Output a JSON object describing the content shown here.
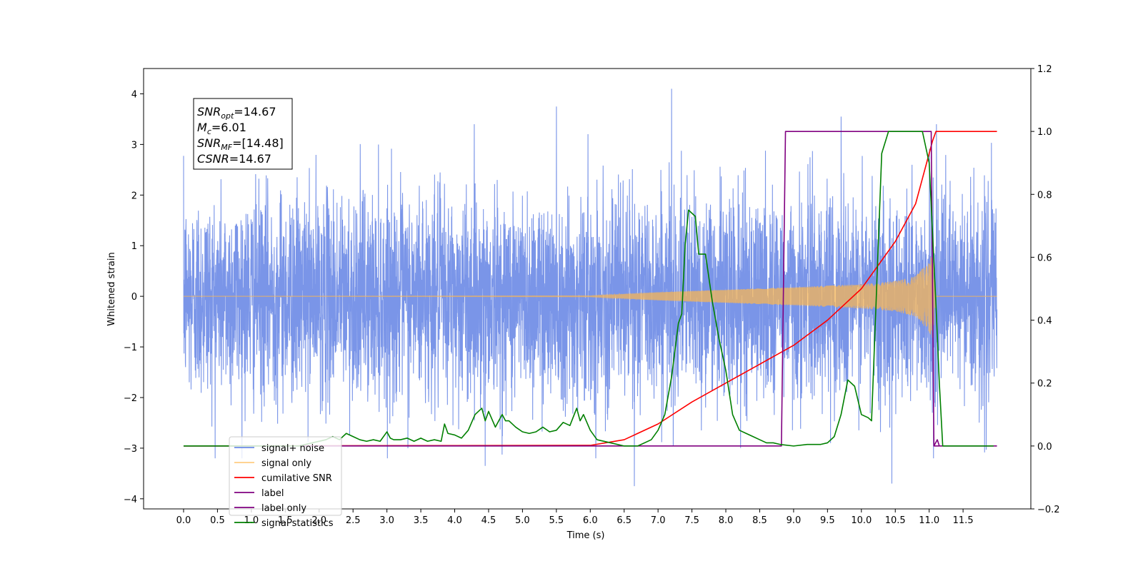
{
  "chart_data": {
    "type": "line",
    "xlabel": "Time (s)",
    "ylabel_left": "Whitened strain",
    "ylabel_right": "",
    "xlim": [
      -0.59,
      12.5
    ],
    "ylim_left": [
      -4.2,
      4.5
    ],
    "ylim_right": [
      -0.2,
      1.2
    ],
    "x_ticks": [
      "0.0",
      "0.5",
      "1.0",
      "1.5",
      "2.0",
      "2.5",
      "3.0",
      "3.5",
      "4.0",
      "4.5",
      "5.0",
      "5.5",
      "6.0",
      "6.5",
      "7.0",
      "7.5",
      "8.0",
      "8.5",
      "9.0",
      "9.5",
      "10.0",
      "10.5",
      "11.0",
      "11.5"
    ],
    "y_ticks_left": [
      "−4",
      "−3",
      "−2",
      "−1",
      "0",
      "1",
      "2",
      "3",
      "4"
    ],
    "y_ticks_right": [
      "−0.2",
      "0.0",
      "0.2",
      "0.4",
      "0.6",
      "0.8",
      "1.0",
      "1.2"
    ],
    "grid": false,
    "legend_placement": "lower-left",
    "annotation": [
      {
        "base": "SNR",
        "sub": "opt",
        "value": "=14.67"
      },
      {
        "base": "M",
        "sub": "c",
        "value": "=6.01"
      },
      {
        "base": "SNR",
        "sub": "MF",
        "value": "=[14.48]"
      },
      {
        "base": "CSNR",
        "sub": "",
        "value": "=14.67"
      }
    ],
    "colors": {
      "signal_noise": "#6b8ae6",
      "signal_only": "#ffb84d",
      "cumulative_snr": "#ff0000",
      "label": "#800080",
      "label_only": "#800080",
      "signal_statistics": "#008000"
    },
    "series": [
      {
        "name": "signal+ noise",
        "axis": "left",
        "description": "noisy whitened strain, sampled at high rate",
        "noise_sigma": 1.0,
        "x_range": [
          0.0,
          12.0
        ],
        "visible_spikes": [
          {
            "x": 7.2,
            "y": 4.1
          },
          {
            "x": 5.5,
            "y": 3.75
          },
          {
            "x": 9.7,
            "y": 3.55
          },
          {
            "x": 6.65,
            "y": -3.75
          },
          {
            "x": 10.45,
            "y": -3.7
          },
          {
            "x": 4.45,
            "y": -3.35
          }
        ]
      },
      {
        "name": "signal only",
        "axis": "left",
        "description": "chirp signal growing in amplitude",
        "envelope_x": [
          0.0,
          6.0,
          7.0,
          8.0,
          9.0,
          10.0,
          10.5,
          10.8,
          11.0,
          11.05,
          11.1,
          12.0
        ],
        "envelope_y": [
          0.0,
          0.01,
          0.08,
          0.13,
          0.18,
          0.24,
          0.3,
          0.4,
          0.7,
          0.85,
          0.0,
          0.0
        ]
      },
      {
        "name": "cumilative SNR",
        "axis": "right",
        "x": [
          0.0,
          6.0,
          6.5,
          7.0,
          7.5,
          8.0,
          8.5,
          9.0,
          9.5,
          10.0,
          10.5,
          10.8,
          11.0,
          11.05,
          11.1,
          11.5,
          12.0
        ],
        "y": [
          0.0,
          0.002,
          0.02,
          0.07,
          0.14,
          0.2,
          0.26,
          0.32,
          0.4,
          0.5,
          0.65,
          0.77,
          0.93,
          0.97,
          1.0,
          1.0,
          1.0
        ]
      },
      {
        "name": "label",
        "axis": "right",
        "x": [
          0.0,
          8.82,
          8.88,
          11.03,
          11.07,
          12.0
        ],
        "y": [
          0.0,
          0.0,
          1.0,
          1.0,
          0.0,
          0.0
        ]
      },
      {
        "name": "label only",
        "axis": "right",
        "x": [
          11.07,
          11.12,
          11.15
        ],
        "y": [
          0.0,
          0.02,
          0.0
        ]
      },
      {
        "name": "signal statistics",
        "axis": "right",
        "x": [
          0.0,
          1.7,
          1.9,
          2.1,
          2.2,
          2.3,
          2.4,
          2.5,
          2.6,
          2.7,
          2.8,
          2.9,
          3.0,
          3.05,
          3.1,
          3.2,
          3.3,
          3.4,
          3.5,
          3.6,
          3.7,
          3.8,
          3.85,
          3.9,
          4.0,
          4.1,
          4.2,
          4.3,
          4.4,
          4.45,
          4.5,
          4.6,
          4.7,
          4.75,
          4.8,
          4.9,
          5.0,
          5.1,
          5.2,
          5.3,
          5.4,
          5.5,
          5.6,
          5.7,
          5.8,
          5.85,
          5.9,
          6.0,
          6.1,
          6.3,
          6.5,
          6.7,
          6.9,
          7.0,
          7.1,
          7.2,
          7.3,
          7.35,
          7.4,
          7.45,
          7.5,
          7.55,
          7.6,
          7.7,
          7.8,
          7.9,
          8.0,
          8.1,
          8.2,
          8.3,
          8.4,
          8.5,
          8.6,
          8.7,
          8.8,
          9.0,
          9.2,
          9.4,
          9.5,
          9.6,
          9.7,
          9.8,
          9.9,
          10.0,
          10.1,
          10.15,
          10.2,
          10.3,
          10.4,
          10.5,
          10.6,
          10.7,
          10.8,
          10.9,
          11.0,
          11.1,
          11.15,
          11.2,
          11.4,
          11.6,
          11.8,
          11.95
        ],
        "y": [
          0.0,
          0.0,
          0.01,
          0.02,
          0.03,
          0.02,
          0.04,
          0.03,
          0.02,
          0.015,
          0.02,
          0.015,
          0.045,
          0.025,
          0.02,
          0.02,
          0.025,
          0.015,
          0.025,
          0.015,
          0.02,
          0.015,
          0.07,
          0.04,
          0.035,
          0.025,
          0.05,
          0.1,
          0.12,
          0.08,
          0.11,
          0.06,
          0.1,
          0.08,
          0.08,
          0.06,
          0.045,
          0.04,
          0.045,
          0.06,
          0.045,
          0.05,
          0.075,
          0.065,
          0.12,
          0.08,
          0.1,
          0.05,
          0.02,
          0.01,
          0.0,
          0.0,
          0.02,
          0.05,
          0.1,
          0.22,
          0.39,
          0.42,
          0.64,
          0.75,
          0.74,
          0.73,
          0.61,
          0.61,
          0.46,
          0.34,
          0.24,
          0.1,
          0.05,
          0.04,
          0.03,
          0.02,
          0.01,
          0.01,
          0.005,
          0.0,
          0.005,
          0.005,
          0.01,
          0.03,
          0.1,
          0.21,
          0.19,
          0.1,
          0.09,
          0.08,
          0.36,
          0.93,
          1.0,
          1.0,
          1.0,
          1.0,
          1.0,
          1.0,
          0.9,
          0.45,
          0.2,
          0.0,
          0.0,
          0.0,
          0.0,
          0.0
        ]
      }
    ]
  }
}
